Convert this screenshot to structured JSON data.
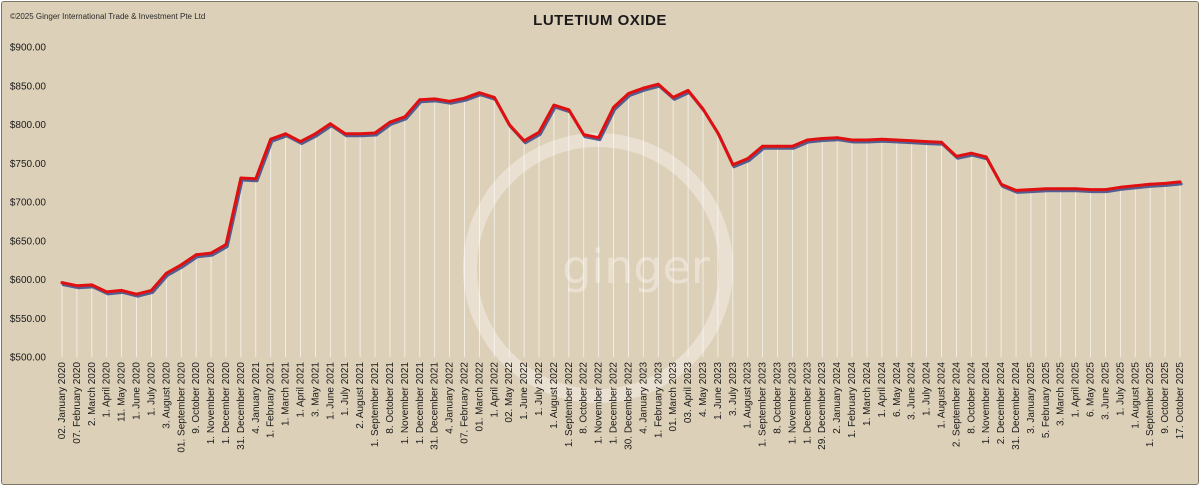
{
  "copyright": "©2025 Ginger International Trade & Investment Pte Ltd",
  "watermark": "ginger",
  "colors": {
    "background": "#ddd0b8",
    "line": "#e01010",
    "shadow": "#3a4a8a",
    "drop": "#ffffff",
    "text": "#1a1a1a"
  },
  "chart_data": {
    "type": "line",
    "title": "LUTETIUM OXIDE",
    "xlabel": "",
    "ylabel": "",
    "ylim": [
      500,
      900
    ],
    "yticks": [
      "$500.00",
      "$550.00",
      "$600.00",
      "$650.00",
      "$700.00",
      "$750.00",
      "$800.00",
      "$850.00",
      "$900.00"
    ],
    "grid": false,
    "legend": "none",
    "tick_labels": [
      "02. January 2020",
      "07. February 2020",
      "2. March 2020",
      "1. April 2020",
      "11. May 2020",
      "1. June 2020",
      "1. July 2020",
      "3. August 2020",
      "01. September 2020",
      "9. October 2020",
      "1. November 2020",
      "1. December 2020",
      "31. December 2020",
      "4. January 2021",
      "1. February 2021",
      "1. March 2021",
      "1. April 2021",
      "3. May 2021",
      "1. June 2021",
      "1. July 2021",
      "2. August 2021",
      "1. September 2021",
      "8. October 2021",
      "1. November 2021",
      "1. December 2021",
      "31. December 2021",
      "4. January 2022",
      "07. February 2022",
      "01. March 2022",
      "1. April 2022",
      "02. May 2022",
      "1. June 2022",
      "1. July 2022",
      "1. August 2022",
      "1. September 2022",
      "8. October 2022",
      "1. November 2022",
      "1. December 2022",
      "30. December 2022",
      "4. January 2023",
      "1. February 2023",
      "01. March 2023",
      "03. April 2023",
      "4. May 2023",
      "1. June 2023",
      "3. July 2023",
      "1. August 2023",
      "1. September 2023",
      "8. October 2023",
      "1. November 2023",
      "1. December 2023",
      "29. December 2023",
      "2. January 2024",
      "1. February 2024",
      "1. March 2024",
      "1. April 2024",
      "6. May 2024",
      "3. June 2024",
      "1. July 2024",
      "1. August 2024",
      "2. September 2024",
      "8. October 2024",
      "1. November 2024",
      "2. December 2024",
      "31. December 2024",
      "3. January 2025",
      "5. February 2025",
      "3. March 2025",
      "1. April 2025",
      "6. May 2025",
      "3. June 2025",
      "1. July 2025",
      "1. August 2025",
      "1. September 2025",
      "9. October 2025",
      "17. October 2025"
    ],
    "series": [
      {
        "values": [
          596,
          592,
          593,
          584,
          586,
          581,
          586,
          608,
          619,
          632,
          634,
          645,
          731,
          730,
          781,
          788,
          778,
          788,
          801,
          788,
          788,
          789,
          803,
          810,
          832,
          833,
          830,
          834,
          841,
          835,
          800,
          779,
          790,
          825,
          819,
          787,
          783,
          822,
          840,
          847,
          852,
          835,
          844,
          820,
          789,
          748,
          756,
          772,
          772,
          772,
          780,
          782,
          783,
          780,
          780,
          781,
          780,
          779,
          778,
          777,
          759,
          763,
          758,
          723,
          715,
          716,
          717,
          717,
          717,
          716,
          716,
          719,
          721,
          723,
          724,
          726
        ]
      }
    ]
  }
}
